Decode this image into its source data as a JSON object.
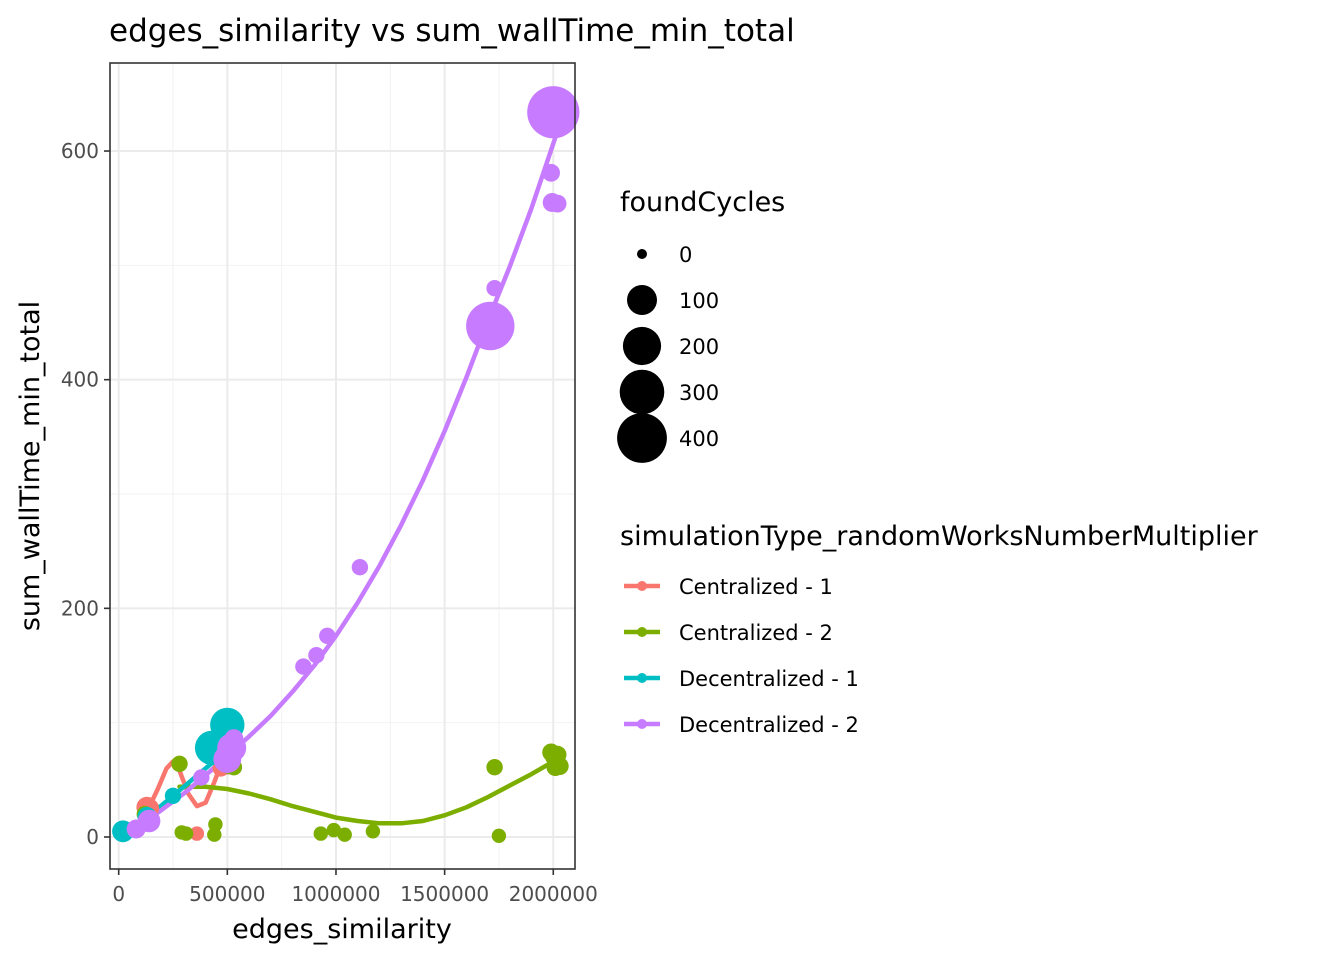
{
  "chart_data": {
    "type": "scatter",
    "title": "edges_similarity  vs  sum_wallTime_min_total",
    "xlabel": "edges_similarity",
    "ylabel": "sum_wallTime_min_total",
    "xlim": [
      -40000,
      2100000
    ],
    "ylim": [
      -28,
      677
    ],
    "x_ticks": [
      0,
      500000,
      1000000,
      1500000,
      2000000
    ],
    "x_tick_labels": [
      "0",
      "500000",
      "1000000",
      "1500000",
      "2000000"
    ],
    "y_ticks": [
      0,
      200,
      400,
      600
    ],
    "y_tick_labels": [
      "0",
      "200",
      "400",
      "600"
    ],
    "grid": true,
    "size_legend": {
      "title": "foundCycles",
      "entries": [
        {
          "label": "0",
          "value": 0
        },
        {
          "label": "100",
          "value": 100
        },
        {
          "label": "200",
          "value": 200
        },
        {
          "label": "300",
          "value": 300
        },
        {
          "label": "400",
          "value": 400
        }
      ]
    },
    "color_legend": {
      "title": "simulationType_randomWorksNumberMultiplier",
      "placement": "right"
    },
    "series": [
      {
        "name": "Centralized - 1",
        "color": "#F8766D",
        "points": [
          {
            "x": 130000,
            "y": 26,
            "size": 30
          },
          {
            "x": 140000,
            "y": 25,
            "size": 25
          },
          {
            "x": 360000,
            "y": 3,
            "size": 5
          },
          {
            "x": 470000,
            "y": 60,
            "size": 10
          },
          {
            "x": 500000,
            "y": 63,
            "size": 20
          },
          {
            "x": 520000,
            "y": 85,
            "size": 10
          }
        ],
        "smooth": [
          [
            20000,
            5
          ],
          [
            80000,
            10
          ],
          [
            130000,
            22
          ],
          [
            180000,
            42
          ],
          [
            220000,
            60
          ],
          [
            250000,
            66
          ],
          [
            280000,
            58
          ],
          [
            320000,
            38
          ],
          [
            360000,
            27
          ],
          [
            400000,
            30
          ],
          [
            440000,
            48
          ],
          [
            480000,
            68
          ],
          [
            520000,
            82
          ]
        ]
      },
      {
        "name": "Centralized - 2",
        "color": "#7CAE00",
        "points": [
          {
            "x": 120000,
            "y": 20,
            "size": 10
          },
          {
            "x": 280000,
            "y": 64,
            "size": 10
          },
          {
            "x": 290000,
            "y": 4,
            "size": 5
          },
          {
            "x": 310000,
            "y": 3,
            "size": 5
          },
          {
            "x": 440000,
            "y": 2,
            "size": 5
          },
          {
            "x": 445000,
            "y": 11,
            "size": 5
          },
          {
            "x": 510000,
            "y": 62,
            "size": 10
          },
          {
            "x": 530000,
            "y": 61,
            "size": 10
          },
          {
            "x": 930000,
            "y": 3,
            "size": 5
          },
          {
            "x": 990000,
            "y": 6,
            "size": 5
          },
          {
            "x": 1040000,
            "y": 2,
            "size": 5
          },
          {
            "x": 1170000,
            "y": 5,
            "size": 5
          },
          {
            "x": 1730000,
            "y": 61,
            "size": 10
          },
          {
            "x": 1750000,
            "y": 1,
            "size": 5
          },
          {
            "x": 1990000,
            "y": 74,
            "size": 15
          },
          {
            "x": 2000000,
            "y": 70,
            "size": 10
          },
          {
            "x": 2010000,
            "y": 61,
            "size": 15
          },
          {
            "x": 2020000,
            "y": 72,
            "size": 15
          },
          {
            "x": 2030000,
            "y": 62,
            "size": 15
          }
        ],
        "smooth": [
          [
            280000,
            44
          ],
          [
            400000,
            44
          ],
          [
            500000,
            42
          ],
          [
            600000,
            38
          ],
          [
            700000,
            33
          ],
          [
            800000,
            27
          ],
          [
            900000,
            22
          ],
          [
            1000000,
            17
          ],
          [
            1100000,
            14
          ],
          [
            1200000,
            12
          ],
          [
            1300000,
            12
          ],
          [
            1400000,
            14
          ],
          [
            1500000,
            19
          ],
          [
            1600000,
            26
          ],
          [
            1700000,
            35
          ],
          [
            1800000,
            45
          ],
          [
            1900000,
            55
          ],
          [
            2000000,
            66
          ]
        ]
      },
      {
        "name": "Decentralized - 1",
        "color": "#00BFC4",
        "points": [
          {
            "x": 20000,
            "y": 5,
            "size": 35
          },
          {
            "x": 130000,
            "y": 18,
            "size": 20
          },
          {
            "x": 250000,
            "y": 36,
            "size": 10
          },
          {
            "x": 430000,
            "y": 78,
            "size": 150
          },
          {
            "x": 500000,
            "y": 98,
            "size": 150
          }
        ],
        "smooth": [
          [
            20000,
            5
          ],
          [
            100000,
            14
          ],
          [
            200000,
            28
          ],
          [
            300000,
            44
          ],
          [
            400000,
            60
          ],
          [
            500000,
            76
          ],
          [
            520000,
            80
          ]
        ]
      },
      {
        "name": "Decentralized - 2",
        "color": "#C77CFF",
        "points": [
          {
            "x": 80000,
            "y": 7,
            "size": 20
          },
          {
            "x": 140000,
            "y": 14,
            "size": 40
          },
          {
            "x": 380000,
            "y": 52,
            "size": 10
          },
          {
            "x": 500000,
            "y": 68,
            "size": 80
          },
          {
            "x": 520000,
            "y": 78,
            "size": 90
          },
          {
            "x": 530000,
            "y": 86,
            "size": 20
          },
          {
            "x": 850000,
            "y": 149,
            "size": 10
          },
          {
            "x": 910000,
            "y": 159,
            "size": 10
          },
          {
            "x": 960000,
            "y": 176,
            "size": 10
          },
          {
            "x": 1110000,
            "y": 236,
            "size": 10
          },
          {
            "x": 1710000,
            "y": 447,
            "size": 370
          },
          {
            "x": 1730000,
            "y": 480,
            "size": 10
          },
          {
            "x": 1990000,
            "y": 581,
            "size": 15
          },
          {
            "x": 1995000,
            "y": 555,
            "size": 20
          },
          {
            "x": 2020000,
            "y": 554,
            "size": 15
          },
          {
            "x": 2000000,
            "y": 634,
            "size": 450
          }
        ],
        "smooth": [
          [
            80000,
            8
          ],
          [
            200000,
            24
          ],
          [
            300000,
            38
          ],
          [
            400000,
            54
          ],
          [
            500000,
            71
          ],
          [
            600000,
            88
          ],
          [
            700000,
            106
          ],
          [
            800000,
            127
          ],
          [
            900000,
            150
          ],
          [
            1000000,
            176
          ],
          [
            1100000,
            205
          ],
          [
            1200000,
            237
          ],
          [
            1300000,
            273
          ],
          [
            1400000,
            312
          ],
          [
            1500000,
            355
          ],
          [
            1600000,
            402
          ],
          [
            1700000,
            452
          ],
          [
            1800000,
            499
          ],
          [
            1900000,
            550
          ],
          [
            2010000,
            612
          ]
        ]
      }
    ]
  }
}
